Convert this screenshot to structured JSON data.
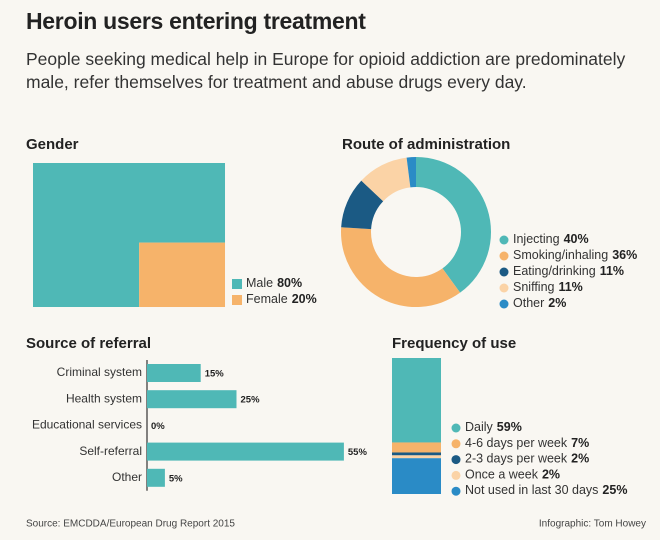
{
  "title": "Heroin users entering treatment",
  "subtitle": "People seeking medical help in Europe for opioid addiction are predominately male, refer themselves for treatment and abuse drugs every day.",
  "source": "Source: EMCDDA/European Drug Report 2015",
  "credit": "Infographic: Tom Howey",
  "chart_data": [
    {
      "type": "area",
      "title": "Gender",
      "categories": [
        "Male",
        "Female"
      ],
      "values": [
        80,
        20
      ],
      "value_labels": [
        "80%",
        "20%"
      ],
      "colors": [
        "#4fb8b6",
        "#f6b36a"
      ]
    },
    {
      "type": "donut",
      "title": "Route of administration",
      "categories": [
        "Injecting",
        "Smoking/inhaling",
        "Eating/drinking",
        "Sniffing",
        "Other"
      ],
      "values": [
        40,
        36,
        11,
        11,
        2
      ],
      "value_labels": [
        "40%",
        "36%",
        "11%",
        "11%",
        "2%"
      ],
      "colors": [
        "#4fb8b6",
        "#f6b36a",
        "#1b5a84",
        "#fbd3a6",
        "#2a8bc6"
      ]
    },
    {
      "type": "hbar",
      "title": "Source of referral",
      "categories": [
        "Criminal system",
        "Health system",
        "Educational services",
        "Self-referral",
        "Other"
      ],
      "values": [
        15,
        25,
        0,
        55,
        5
      ],
      "value_labels": [
        "15%",
        "25%",
        "0%",
        "55%",
        "5%"
      ],
      "color": "#4fb8b6"
    },
    {
      "type": "stacked-column",
      "title": "Frequency of use",
      "categories": [
        "Daily",
        "4-6 days per week",
        "2-3 days per week",
        "Once a week",
        "Not used in last 30 days"
      ],
      "values": [
        59,
        7,
        2,
        2,
        25
      ],
      "value_labels": [
        "59%",
        "7%",
        "2%",
        "2%",
        "25%"
      ],
      "colors": [
        "#4fb8b6",
        "#f6b36a",
        "#1b5a84",
        "#fbd3a6",
        "#2a8bc6"
      ]
    }
  ]
}
